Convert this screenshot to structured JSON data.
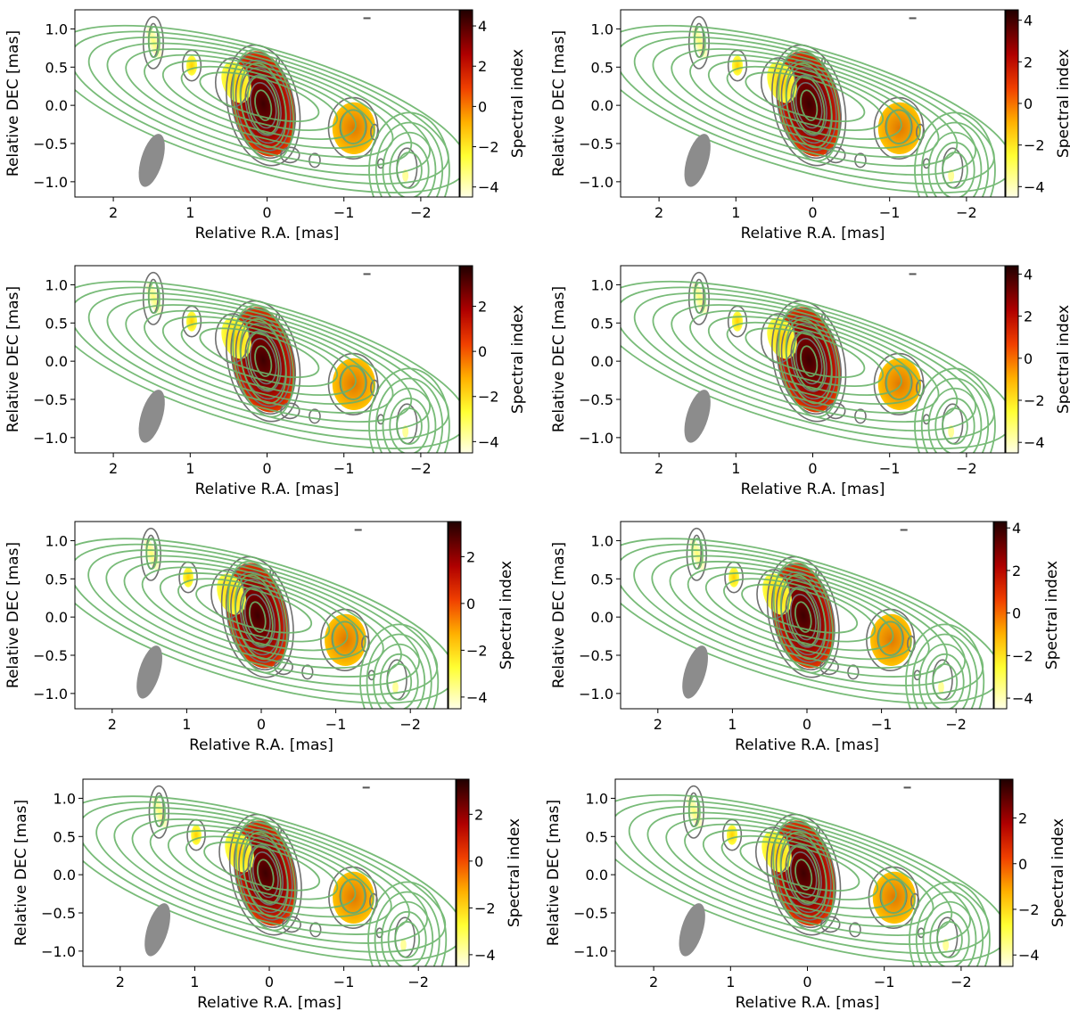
{
  "chart_data": [
    {
      "type": "heatmap",
      "panel": "top-left",
      "xlabel": "Relative R.A. [mas]",
      "ylabel": "Relative DEC [mas]",
      "colorbar_label": "Spectral index",
      "xlim": [
        2.5,
        -2.5
      ],
      "ylim": [
        -1.2,
        1.25
      ],
      "xticks": [
        "2",
        "1",
        "0",
        "−1",
        "−2"
      ],
      "yticks": [
        "−1.0",
        "−0.5",
        "0.0",
        "0.5",
        "1.0"
      ],
      "cbar_range": [
        -4.5,
        4.8
      ],
      "cbar_ticks": [
        "−4",
        "−2",
        "0",
        "2",
        "4"
      ]
    },
    {
      "type": "heatmap",
      "panel": "top-right",
      "xlabel": "Relative R.A. [mas]",
      "ylabel": "Relative DEC [mas]",
      "colorbar_label": "Spectral index",
      "xlim": [
        2.5,
        -2.5
      ],
      "ylim": [
        -1.2,
        1.25
      ],
      "xticks": [
        "2",
        "1",
        "0",
        "−1",
        "−2"
      ],
      "yticks": [
        "−1.0",
        "−0.5",
        "0.0",
        "0.5",
        "1.0"
      ],
      "cbar_range": [
        -4.5,
        4.5
      ],
      "cbar_ticks": [
        "−4",
        "−2",
        "0",
        "2",
        "4"
      ]
    },
    {
      "type": "heatmap",
      "panel": "second-left",
      "xlabel": "Relative R.A. [mas]",
      "ylabel": "Relative DEC [mas]",
      "colorbar_label": "Spectral index",
      "xlim": [
        2.5,
        -2.5
      ],
      "ylim": [
        -1.2,
        1.25
      ],
      "xticks": [
        "2",
        "1",
        "0",
        "−1",
        "−2"
      ],
      "yticks": [
        "−1.0",
        "−0.5",
        "0.0",
        "0.5",
        "1.0"
      ],
      "cbar_range": [
        -4.5,
        3.8
      ],
      "cbar_ticks": [
        "−4",
        "−2",
        "0",
        "2"
      ]
    },
    {
      "type": "heatmap",
      "panel": "second-right",
      "xlabel": "Relative R.A. [mas]",
      "ylabel": "Relative DEC [mas]",
      "colorbar_label": "Spectral index",
      "xlim": [
        2.5,
        -2.5
      ],
      "ylim": [
        -1.2,
        1.25
      ],
      "xticks": [
        "2",
        "1",
        "0",
        "−1",
        "−2"
      ],
      "yticks": [
        "−1.0",
        "−0.5",
        "0.0",
        "0.5",
        "1.0"
      ],
      "cbar_range": [
        -4.5,
        4.4
      ],
      "cbar_ticks": [
        "−4",
        "−2",
        "0",
        "2",
        "4"
      ]
    },
    {
      "type": "heatmap",
      "panel": "third-left",
      "xlabel": "Relative R.A. [mas]",
      "ylabel": "Relative DEC [mas]",
      "colorbar_label": "Spectral index",
      "xlim": [
        2.5,
        -2.5
      ],
      "ylim": [
        -1.2,
        1.25
      ],
      "xticks": [
        "2",
        "1",
        "0",
        "−1",
        "−2"
      ],
      "yticks": [
        "−1.0",
        "−0.5",
        "0.0",
        "0.5",
        "1.0"
      ],
      "cbar_range": [
        -4.5,
        3.5
      ],
      "cbar_ticks": [
        "−4",
        "−2",
        "0",
        "2"
      ]
    },
    {
      "type": "heatmap",
      "panel": "third-right",
      "xlabel": "Relative R.A. [mas]",
      "ylabel": "Relative DEC [mas]",
      "colorbar_label": "Spectral index",
      "xlim": [
        2.5,
        -2.5
      ],
      "ylim": [
        -1.2,
        1.25
      ],
      "xticks": [
        "2",
        "1",
        "0",
        "−1",
        "−2"
      ],
      "yticks": [
        "−1.0",
        "−0.5",
        "0.0",
        "0.5",
        "1.0"
      ],
      "cbar_range": [
        -4.5,
        4.3
      ],
      "cbar_ticks": [
        "−4",
        "−2",
        "0",
        "2",
        "4"
      ]
    },
    {
      "type": "heatmap",
      "panel": "bottom-left",
      "xlabel": "Relative R.A. [mas]",
      "ylabel": "Relative DEC [mas]",
      "colorbar_label": "Spectral index",
      "xlim": [
        2.5,
        -2.5
      ],
      "ylim": [
        -1.2,
        1.25
      ],
      "xticks": [
        "2",
        "1",
        "0",
        "−1",
        "−2"
      ],
      "yticks": [
        "−1.0",
        "−0.5",
        "0.0",
        "0.5",
        "1.0"
      ],
      "cbar_range": [
        -4.5,
        3.5
      ],
      "cbar_ticks": [
        "−4",
        "−2",
        "0",
        "2"
      ]
    },
    {
      "type": "heatmap",
      "panel": "bottom-right",
      "xlabel": "Relative R.A. [mas]",
      "ylabel": "Relative DEC [mas]",
      "colorbar_label": "Spectral index",
      "xlim": [
        2.5,
        -2.5
      ],
      "ylim": [
        -1.2,
        1.25
      ],
      "xticks": [
        "2",
        "1",
        "0",
        "−1",
        "−2"
      ],
      "yticks": [
        "−1.0",
        "−0.5",
        "0.0",
        "0.5",
        "1.0"
      ],
      "cbar_range": [
        -4.5,
        3.7
      ],
      "cbar_ticks": [
        "−4",
        "−2",
        "0",
        "2"
      ]
    }
  ],
  "colors": {
    "grey_contour": "#707070",
    "green_contour": "#6ab46a",
    "beam": "#8c8c8c"
  }
}
